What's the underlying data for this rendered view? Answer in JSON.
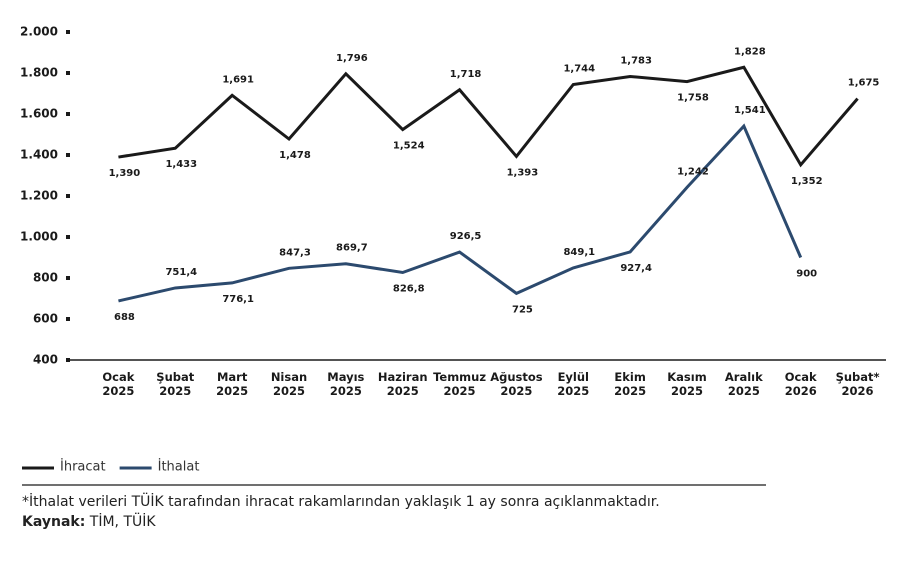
{
  "chart_data": {
    "type": "line",
    "categories": [
      "Ocak 2025",
      "Şubat 2025",
      "Mart 2025",
      "Nisan 2025",
      "Mayıs 2025",
      "Haziran 2025",
      "Temmuz 2025",
      "Ağustos 2025",
      "Eylül 2025",
      "Ekim 2025",
      "Kasım 2025",
      "Aralık 2025",
      "Ocak 2026",
      "Şubat* 2026"
    ],
    "series": [
      {
        "name": "İhracat",
        "color": "#1a1a1a",
        "values": [
          1390,
          1433,
          1691,
          1478,
          1796,
          1524,
          1718,
          1393,
          1744,
          1783,
          1758,
          1828,
          1352,
          1675
        ],
        "value_labels": [
          "1,390",
          "1,433",
          "1,691",
          "1,478",
          "1,796",
          "1,524",
          "1,718",
          "1,393",
          "1,744",
          "1,783",
          "1,758",
          "1,828",
          "1,352",
          "1,675"
        ]
      },
      {
        "name": "İthalat",
        "color": "#2c4a6e",
        "values": [
          688,
          751.4,
          776.1,
          847.3,
          869.7,
          826.8,
          926.5,
          725,
          849.1,
          927.4,
          1242,
          1541,
          900,
          null
        ],
        "value_labels": [
          "688",
          "751,4",
          "776,1",
          "847,3",
          "869,7",
          "826,8",
          "926,5",
          "725",
          "849,1",
          "927,4",
          "1,242",
          "1,541",
          "900",
          null
        ]
      }
    ],
    "ylim": [
      400,
      2000
    ],
    "yticks": [
      400,
      600,
      800,
      {
        "value": 1000,
        "label": "1.000"
      },
      {
        "value": 1200,
        "label": "1.200"
      },
      {
        "value": 1400,
        "label": "1.400"
      },
      {
        "value": 1600,
        "label": "1.600"
      },
      {
        "value": 1800,
        "label": "1.800"
      },
      {
        "value": 2000,
        "label": "2.000"
      }
    ],
    "grid": false,
    "footnote": "*İthalat verileri TÜİK tarafından ihracat rakamlarından yaklaşık 1 ay sonra açıklanmaktadır.",
    "source_label": "Kaynak:",
    "source": "TİM, TÜİK"
  }
}
